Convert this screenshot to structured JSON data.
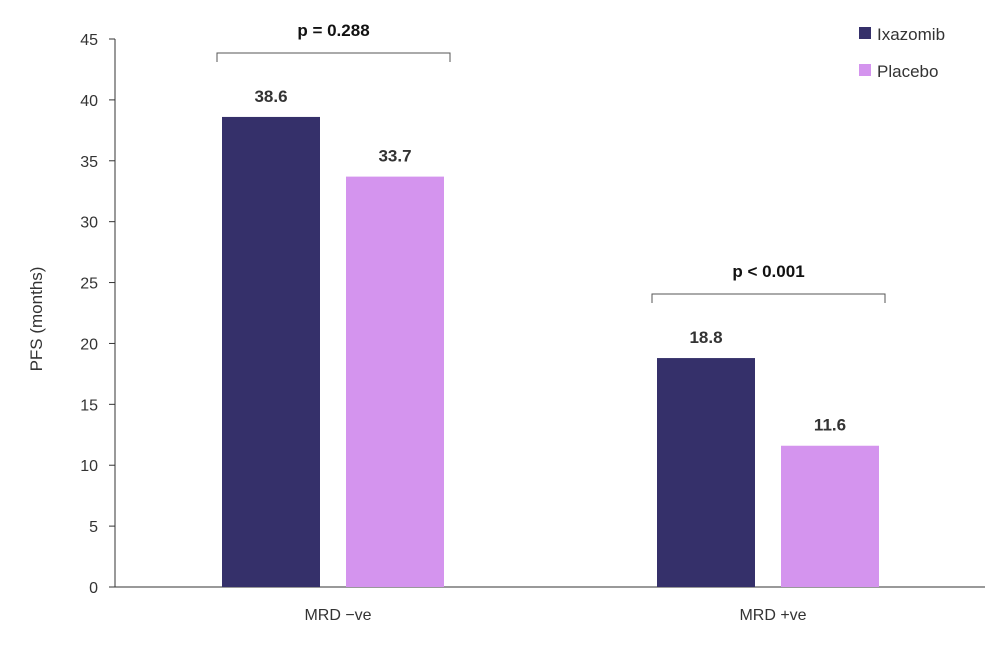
{
  "chart_data": {
    "type": "bar",
    "categories": [
      "MRD −ve",
      "MRD +ve"
    ],
    "series": [
      {
        "name": "Ixazomib",
        "values": [
          38.6,
          18.8
        ],
        "color": "#35306a"
      },
      {
        "name": "Placebo",
        "values": [
          33.7,
          11.6
        ],
        "color": "#d494ee"
      }
    ],
    "data_labels": [
      [
        "38.6",
        "18.8"
      ],
      [
        "33.7",
        "11.6"
      ]
    ],
    "annotations": [
      "p = 0.288",
      "p < 0.001"
    ],
    "ylabel": "PFS (months)",
    "xlabel": "",
    "ylim": [
      0,
      45
    ],
    "yticks": [
      "0",
      "5",
      "10",
      "15",
      "20",
      "25",
      "30",
      "35",
      "40",
      "45"
    ],
    "grid": false,
    "legend_position": "top-right"
  }
}
